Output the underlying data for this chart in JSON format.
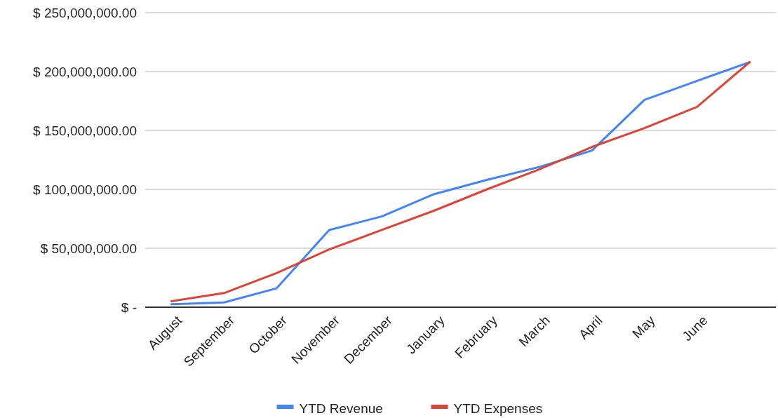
{
  "chart_data": {
    "type": "line",
    "categories": [
      "August",
      "September",
      "October",
      "November",
      "December",
      "January",
      "February",
      "March",
      "April",
      "May",
      "June",
      null
    ],
    "series": [
      {
        "name": "YTD Revenue",
        "color": "#4285f4",
        "values": [
          2500000,
          4000000,
          16000000,
          65500000,
          77000000,
          96000000,
          108000000,
          119000000,
          133000000,
          176000000,
          192000000,
          208000000
        ]
      },
      {
        "name": "YTD Expenses",
        "color": "#db4437",
        "values": [
          5000000,
          12000000,
          29000000,
          49000000,
          65500000,
          82000000,
          100000000,
          117000000,
          136000000,
          152000000,
          170000000,
          208000000
        ]
      }
    ],
    "ylim": [
      0,
      250000000
    ],
    "yticks": [
      {
        "value": 0,
        "label": "$ -"
      },
      {
        "value": 50000000,
        "label": "$ 50,000,000.00"
      },
      {
        "value": 100000000,
        "label": "$ 100,000,000.00"
      },
      {
        "value": 150000000,
        "label": "$ 150,000,000.00"
      },
      {
        "value": 200000000,
        "label": "$ 200,000,000.00"
      },
      {
        "value": 250000000,
        "label": "$ 250,000,000.00"
      }
    ],
    "grid": "y",
    "legend": "bottom",
    "marker": "none",
    "line_style": "solid"
  }
}
